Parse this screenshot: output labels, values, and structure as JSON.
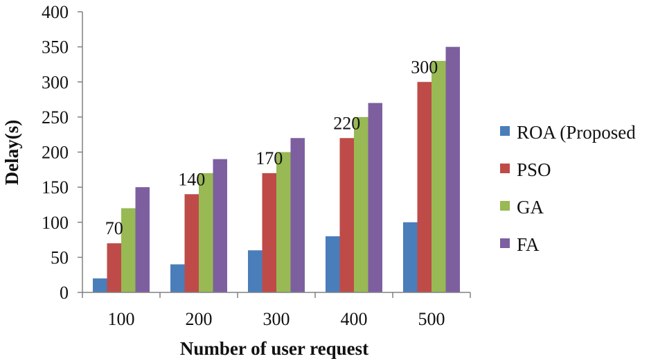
{
  "chart_data": {
    "type": "bar",
    "title": "",
    "xlabel": "Number of user request",
    "ylabel": "Delay(s)",
    "ylim": [
      0,
      400
    ],
    "yticks": [
      0,
      50,
      100,
      150,
      200,
      250,
      300,
      350,
      400
    ],
    "categories": [
      "100",
      "200",
      "300",
      "400",
      "500"
    ],
    "series": [
      {
        "name": "ROA (Proposed",
        "color": "#4a7ebb",
        "values": [
          20,
          40,
          60,
          80,
          100
        ]
      },
      {
        "name": "PSO",
        "color": "#be4b48",
        "values": [
          70,
          140,
          170,
          220,
          300
        ]
      },
      {
        "name": "GA",
        "color": "#98b954",
        "values": [
          120,
          170,
          200,
          250,
          330
        ]
      },
      {
        "name": "FA",
        "color": "#7d5fa0",
        "values": [
          150,
          190,
          220,
          270,
          350
        ]
      }
    ],
    "data_labels": {
      "series": "PSO",
      "labels": [
        "70",
        "140",
        "170",
        "220",
        "300"
      ]
    },
    "legend_position": "right",
    "grid": false
  }
}
